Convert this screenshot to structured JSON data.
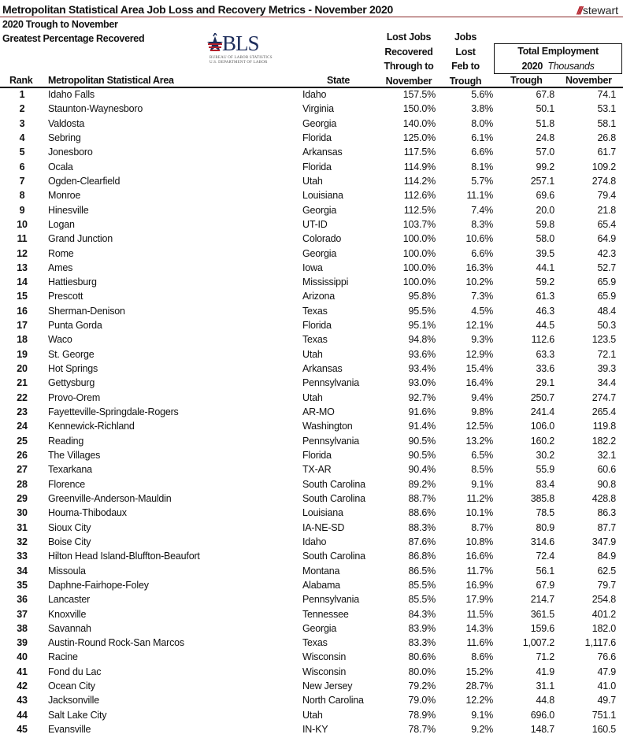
{
  "title": "Metropolitan Statistical Area Job Loss and Recovery Metrics - November 2020",
  "subtitle1": "2020 Trough to November",
  "subtitle2": "Greatest Percentage Recovered",
  "logos": {
    "stewart": "stewart",
    "bls": "BLS",
    "bls_line1": "BUREAU OF LABOR STATISTICS",
    "bls_line2": "U.S. DEPARTMENT OF LABOR"
  },
  "colors": {
    "accent": "#b3202a",
    "bls_navy": "#1c2c5a"
  },
  "headers": {
    "rank": "Rank",
    "area": "Metropolitan Statistical Area",
    "state": "State",
    "recovered": [
      "Lost Jobs",
      "Recovered",
      "Through to",
      "November"
    ],
    "lost": [
      "Jobs",
      "Lost",
      "Feb to",
      "Trough"
    ],
    "total_employment": "Total Employment",
    "year": "2020",
    "units": "Thousands",
    "trough": "Trough",
    "november": "November"
  },
  "rows": [
    [
      "1",
      "Idaho Falls",
      "Idaho",
      "157.5%",
      "5.6%",
      "67.8",
      "74.1"
    ],
    [
      "2",
      "Staunton-Waynesboro",
      "Virginia",
      "150.0%",
      "3.8%",
      "50.1",
      "53.1"
    ],
    [
      "3",
      "Valdosta",
      "Georgia",
      "140.0%",
      "8.0%",
      "51.8",
      "58.1"
    ],
    [
      "4",
      "Sebring",
      "Florida",
      "125.0%",
      "6.1%",
      "24.8",
      "26.8"
    ],
    [
      "5",
      "Jonesboro",
      "Arkansas",
      "117.5%",
      "6.6%",
      "57.0",
      "61.7"
    ],
    [
      "6",
      "Ocala",
      "Florida",
      "114.9%",
      "8.1%",
      "99.2",
      "109.2"
    ],
    [
      "7",
      "Ogden-Clearfield",
      "Utah",
      "114.2%",
      "5.7%",
      "257.1",
      "274.8"
    ],
    [
      "8",
      "Monroe",
      "Louisiana",
      "112.6%",
      "11.1%",
      "69.6",
      "79.4"
    ],
    [
      "9",
      "Hinesville",
      "Georgia",
      "112.5%",
      "7.4%",
      "20.0",
      "21.8"
    ],
    [
      "10",
      "Logan",
      "UT-ID",
      "103.7%",
      "8.3%",
      "59.8",
      "65.4"
    ],
    [
      "11",
      "Grand Junction",
      "Colorado",
      "100.0%",
      "10.6%",
      "58.0",
      "64.9"
    ],
    [
      "12",
      "Rome",
      "Georgia",
      "100.0%",
      "6.6%",
      "39.5",
      "42.3"
    ],
    [
      "13",
      "Ames",
      "Iowa",
      "100.0%",
      "16.3%",
      "44.1",
      "52.7"
    ],
    [
      "14",
      "Hattiesburg",
      "Mississippi",
      "100.0%",
      "10.2%",
      "59.2",
      "65.9"
    ],
    [
      "15",
      "Prescott",
      "Arizona",
      "95.8%",
      "7.3%",
      "61.3",
      "65.9"
    ],
    [
      "16",
      "Sherman-Denison",
      "Texas",
      "95.5%",
      "4.5%",
      "46.3",
      "48.4"
    ],
    [
      "17",
      "Punta Gorda",
      "Florida",
      "95.1%",
      "12.1%",
      "44.5",
      "50.3"
    ],
    [
      "18",
      "Waco",
      "Texas",
      "94.8%",
      "9.3%",
      "112.6",
      "123.5"
    ],
    [
      "19",
      "St. George",
      "Utah",
      "93.6%",
      "12.9%",
      "63.3",
      "72.1"
    ],
    [
      "20",
      "Hot Springs",
      "Arkansas",
      "93.4%",
      "15.4%",
      "33.6",
      "39.3"
    ],
    [
      "21",
      "Gettysburg",
      "Pennsylvania",
      "93.0%",
      "16.4%",
      "29.1",
      "34.4"
    ],
    [
      "22",
      "Provo-Orem",
      "Utah",
      "92.7%",
      "9.4%",
      "250.7",
      "274.7"
    ],
    [
      "23",
      "Fayetteville-Springdale-Rogers",
      "AR-MO",
      "91.6%",
      "9.8%",
      "241.4",
      "265.4"
    ],
    [
      "24",
      "Kennewick-Richland",
      "Washington",
      "91.4%",
      "12.5%",
      "106.0",
      "119.8"
    ],
    [
      "25",
      "Reading",
      "Pennsylvania",
      "90.5%",
      "13.2%",
      "160.2",
      "182.2"
    ],
    [
      "26",
      "The Villages",
      "Florida",
      "90.5%",
      "6.5%",
      "30.2",
      "32.1"
    ],
    [
      "27",
      "Texarkana",
      "TX-AR",
      "90.4%",
      "8.5%",
      "55.9",
      "60.6"
    ],
    [
      "28",
      "Florence",
      "South Carolina",
      "89.2%",
      "9.1%",
      "83.4",
      "90.8"
    ],
    [
      "29",
      "Greenville-Anderson-Mauldin",
      "South Carolina",
      "88.7%",
      "11.2%",
      "385.8",
      "428.8"
    ],
    [
      "30",
      "Houma-Thibodaux",
      "Louisiana",
      "88.6%",
      "10.1%",
      "78.5",
      "86.3"
    ],
    [
      "31",
      "Sioux City",
      "IA-NE-SD",
      "88.3%",
      "8.7%",
      "80.9",
      "87.7"
    ],
    [
      "32",
      "Boise City",
      "Idaho",
      "87.6%",
      "10.8%",
      "314.6",
      "347.9"
    ],
    [
      "33",
      "Hilton Head Island-Bluffton-Beaufort",
      "South Carolina",
      "86.8%",
      "16.6%",
      "72.4",
      "84.9"
    ],
    [
      "34",
      "Missoula",
      "Montana",
      "86.5%",
      "11.7%",
      "56.1",
      "62.5"
    ],
    [
      "35",
      "Daphne-Fairhope-Foley",
      "Alabama",
      "85.5%",
      "16.9%",
      "67.9",
      "79.7"
    ],
    [
      "36",
      "Lancaster",
      "Pennsylvania",
      "85.5%",
      "17.9%",
      "214.7",
      "254.8"
    ],
    [
      "37",
      "Knoxville",
      "Tennessee",
      "84.3%",
      "11.5%",
      "361.5",
      "401.2"
    ],
    [
      "38",
      "Savannah",
      "Georgia",
      "83.9%",
      "14.3%",
      "159.6",
      "182.0"
    ],
    [
      "39",
      "Austin-Round Rock-San Marcos",
      "Texas",
      "83.3%",
      "11.6%",
      "1,007.2",
      "1,117.6"
    ],
    [
      "40",
      "Racine",
      "Wisconsin",
      "80.6%",
      "8.6%",
      "71.2",
      "76.6"
    ],
    [
      "41",
      "Fond du Lac",
      "Wisconsin",
      "80.0%",
      "15.2%",
      "41.9",
      "47.9"
    ],
    [
      "42",
      "Ocean City",
      "New Jersey",
      "79.2%",
      "28.7%",
      "31.1",
      "41.0"
    ],
    [
      "43",
      "Jacksonville",
      "North Carolina",
      "79.0%",
      "12.2%",
      "44.8",
      "49.7"
    ],
    [
      "44",
      "Salt Lake City",
      "Utah",
      "78.9%",
      "9.1%",
      "696.0",
      "751.1"
    ],
    [
      "45",
      "Evansville",
      "IN-KY",
      "78.7%",
      "9.2%",
      "148.7",
      "160.5"
    ]
  ]
}
